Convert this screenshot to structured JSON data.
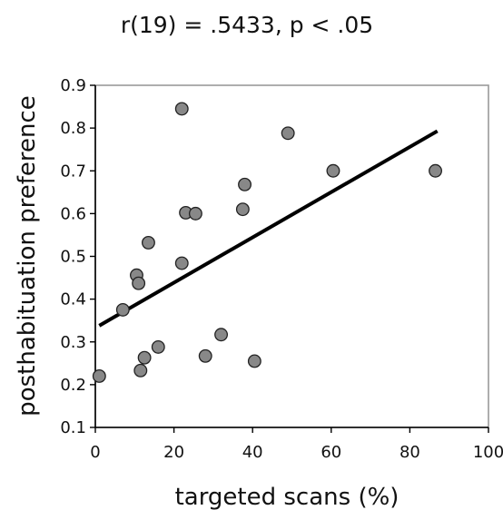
{
  "chart_data": {
    "type": "scatter",
    "title": "r(19) = .5433, p < .05",
    "xlabel": "targeted scans (%)",
    "ylabel": "posthabituation preference",
    "xlim": [
      0,
      100
    ],
    "ylim": [
      0.1,
      0.9
    ],
    "x_ticks": [
      0,
      20,
      40,
      60,
      80,
      100
    ],
    "y_ticks": [
      0.1,
      0.2,
      0.3,
      0.4,
      0.5,
      0.6,
      0.7,
      0.8,
      0.9
    ],
    "x_tick_labels": [
      "0",
      "20",
      "40",
      "60",
      "80",
      "100"
    ],
    "y_tick_labels": [
      "0.1",
      "0.2",
      "0.3",
      "0.4",
      "0.5",
      "0.6",
      "0.7",
      "0.8",
      "0.9"
    ],
    "points": [
      {
        "x": 1,
        "y": 0.22
      },
      {
        "x": 7,
        "y": 0.375
      },
      {
        "x": 10.5,
        "y": 0.456
      },
      {
        "x": 11,
        "y": 0.437
      },
      {
        "x": 11.5,
        "y": 0.233
      },
      {
        "x": 12.5,
        "y": 0.263
      },
      {
        "x": 13.5,
        "y": 0.532
      },
      {
        "x": 16,
        "y": 0.288
      },
      {
        "x": 22,
        "y": 0.845
      },
      {
        "x": 22,
        "y": 0.484
      },
      {
        "x": 23,
        "y": 0.602
      },
      {
        "x": 25.5,
        "y": 0.6
      },
      {
        "x": 28,
        "y": 0.267
      },
      {
        "x": 32,
        "y": 0.317
      },
      {
        "x": 37.5,
        "y": 0.61
      },
      {
        "x": 38,
        "y": 0.668
      },
      {
        "x": 40.5,
        "y": 0.255
      },
      {
        "x": 49,
        "y": 0.788
      },
      {
        "x": 60.5,
        "y": 0.7
      },
      {
        "x": 86.5,
        "y": 0.7
      }
    ],
    "regression_line": {
      "x": [
        1,
        87
      ],
      "y": [
        0.338,
        0.793
      ]
    },
    "marker_fill": "#888888",
    "marker_stroke": "#222222",
    "line_color": "#000000",
    "frame_color": "#9a9a9a",
    "grid": false,
    "legend": "none"
  }
}
